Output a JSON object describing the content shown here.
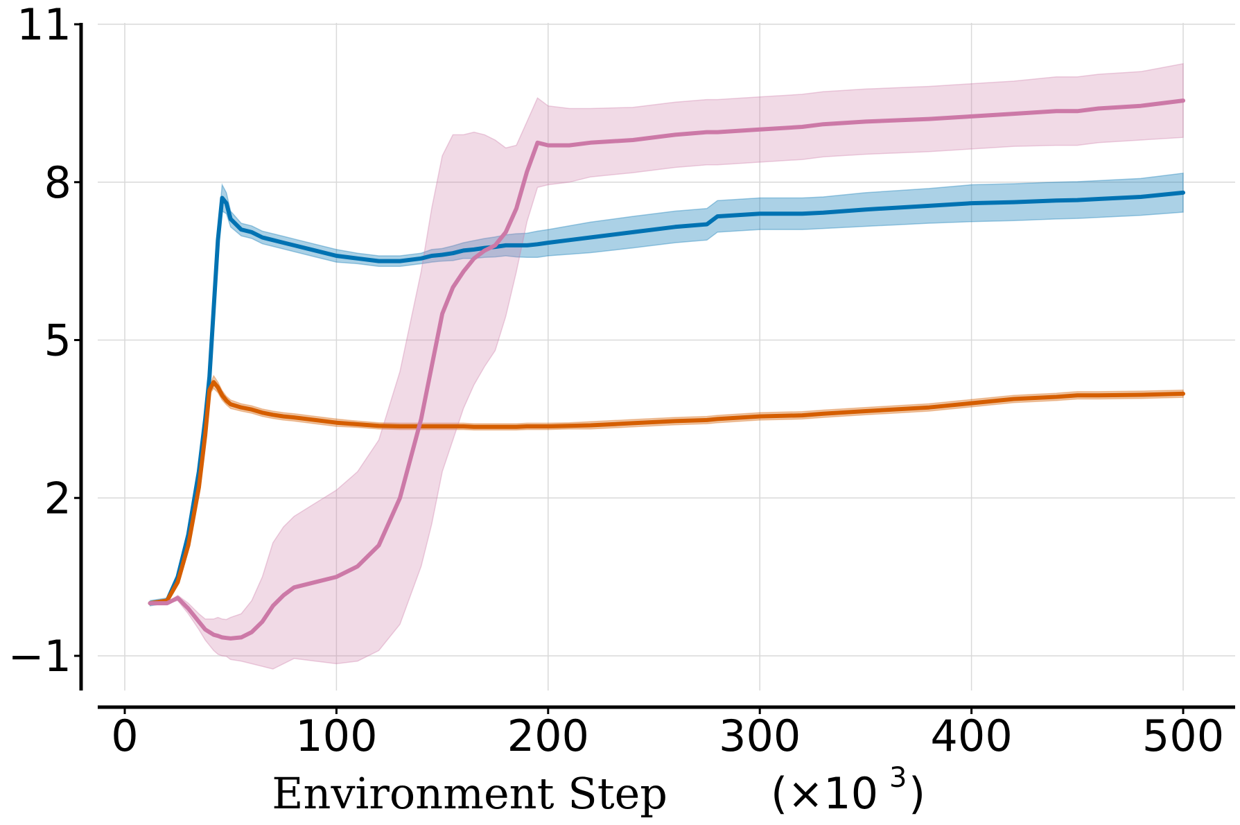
{
  "chart_data": {
    "type": "line",
    "title": "",
    "xlabel": "Environment Step",
    "xlabel_unit": "(×10",
    "xlabel_exp": "3",
    "xlabel_close": ")",
    "ylabel": "",
    "xlim": [
      -5,
      505
    ],
    "ylim": [
      -2.0,
      11.0
    ],
    "grid": true,
    "xticks": [
      0,
      100,
      200,
      300,
      400,
      500
    ],
    "xtick_labels": [
      "0",
      "100",
      "200",
      "300",
      "400",
      "500"
    ],
    "yticks": [
      -1,
      2,
      5,
      8,
      11
    ],
    "ytick_labels": [
      "−1",
      "2",
      "5",
      "8",
      "11"
    ],
    "x": [
      12,
      20,
      25,
      30,
      35,
      38,
      40,
      42,
      44,
      46,
      48,
      50,
      55,
      60,
      65,
      70,
      75,
      80,
      90,
      100,
      110,
      120,
      130,
      140,
      145,
      150,
      155,
      160,
      165,
      170,
      175,
      180,
      185,
      190,
      195,
      200,
      210,
      220,
      240,
      260,
      275,
      280,
      300,
      320,
      330,
      350,
      380,
      400,
      420,
      440,
      450,
      460,
      480,
      500
    ],
    "series": [
      {
        "name": "blue",
        "color": "#0072b2",
        "values": [
          0.0,
          0.05,
          0.5,
          1.3,
          2.5,
          3.5,
          4.3,
          5.6,
          6.9,
          7.7,
          7.6,
          7.3,
          7.1,
          7.05,
          6.95,
          6.9,
          6.85,
          6.8,
          6.7,
          6.6,
          6.55,
          6.5,
          6.5,
          6.55,
          6.6,
          6.62,
          6.65,
          6.7,
          6.72,
          6.75,
          6.77,
          6.8,
          6.8,
          6.8,
          6.82,
          6.85,
          6.9,
          6.95,
          7.05,
          7.15,
          7.2,
          7.35,
          7.4,
          7.4,
          7.42,
          7.48,
          7.55,
          7.6,
          7.62,
          7.65,
          7.66,
          7.68,
          7.72,
          7.8
        ],
        "band": [
          0.05,
          0.05,
          0.05,
          0.06,
          0.08,
          0.1,
          0.12,
          0.15,
          0.2,
          0.25,
          0.2,
          0.15,
          0.12,
          0.12,
          0.12,
          0.12,
          0.12,
          0.12,
          0.12,
          0.12,
          0.1,
          0.1,
          0.1,
          0.1,
          0.12,
          0.12,
          0.14,
          0.15,
          0.17,
          0.18,
          0.19,
          0.2,
          0.22,
          0.23,
          0.25,
          0.25,
          0.27,
          0.29,
          0.3,
          0.3,
          0.3,
          0.3,
          0.3,
          0.3,
          0.3,
          0.32,
          0.33,
          0.35,
          0.35,
          0.35,
          0.35,
          0.35,
          0.35,
          0.37
        ]
      },
      {
        "name": "orange",
        "color": "#d55e00",
        "values": [
          0.0,
          0.05,
          0.4,
          1.1,
          2.2,
          3.2,
          4.05,
          4.2,
          4.1,
          3.95,
          3.85,
          3.78,
          3.72,
          3.68,
          3.62,
          3.58,
          3.55,
          3.53,
          3.48,
          3.43,
          3.4,
          3.37,
          3.36,
          3.36,
          3.36,
          3.36,
          3.36,
          3.36,
          3.35,
          3.35,
          3.35,
          3.35,
          3.35,
          3.36,
          3.36,
          3.36,
          3.37,
          3.38,
          3.42,
          3.46,
          3.48,
          3.5,
          3.55,
          3.57,
          3.6,
          3.65,
          3.72,
          3.8,
          3.88,
          3.92,
          3.95,
          3.95,
          3.96,
          3.98
        ],
        "band": [
          0.03,
          0.03,
          0.03,
          0.04,
          0.05,
          0.06,
          0.08,
          0.12,
          0.1,
          0.09,
          0.08,
          0.08,
          0.07,
          0.07,
          0.07,
          0.07,
          0.07,
          0.07,
          0.07,
          0.07,
          0.06,
          0.06,
          0.06,
          0.06,
          0.06,
          0.06,
          0.06,
          0.06,
          0.06,
          0.06,
          0.06,
          0.06,
          0.06,
          0.06,
          0.06,
          0.06,
          0.06,
          0.07,
          0.07,
          0.07,
          0.07,
          0.07,
          0.07,
          0.07,
          0.07,
          0.07,
          0.07,
          0.07,
          0.07,
          0.07,
          0.07,
          0.07,
          0.07,
          0.07
        ]
      },
      {
        "name": "pink",
        "color": "#cc79a7",
        "values": [
          0.0,
          0.0,
          0.1,
          -0.1,
          -0.35,
          -0.5,
          -0.55,
          -0.6,
          -0.62,
          -0.65,
          -0.66,
          -0.67,
          -0.65,
          -0.55,
          -0.35,
          -0.05,
          0.15,
          0.3,
          0.4,
          0.5,
          0.7,
          1.1,
          2.0,
          3.5,
          4.5,
          5.5,
          6.0,
          6.3,
          6.55,
          6.7,
          6.8,
          7.05,
          7.5,
          8.2,
          8.75,
          8.7,
          8.7,
          8.75,
          8.8,
          8.9,
          8.95,
          8.95,
          9.0,
          9.05,
          9.1,
          9.15,
          9.2,
          9.25,
          9.3,
          9.35,
          9.35,
          9.4,
          9.45,
          9.55
        ],
        "band": [
          0.0,
          0.0,
          0.05,
          0.1,
          0.15,
          0.2,
          0.25,
          0.3,
          0.35,
          0.35,
          0.35,
          0.4,
          0.45,
          0.6,
          0.85,
          1.2,
          1.3,
          1.35,
          1.5,
          1.65,
          1.8,
          2.0,
          2.4,
          2.8,
          3.0,
          3.0,
          2.9,
          2.6,
          2.4,
          2.2,
          2.0,
          1.6,
          1.2,
          0.95,
          0.85,
          0.75,
          0.7,
          0.65,
          0.62,
          0.62,
          0.62,
          0.62,
          0.62,
          0.62,
          0.62,
          0.62,
          0.62,
          0.62,
          0.62,
          0.65,
          0.65,
          0.65,
          0.65,
          0.7
        ]
      }
    ]
  }
}
